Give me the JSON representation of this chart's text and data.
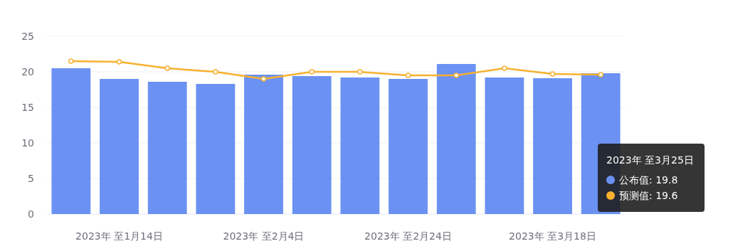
{
  "chart_data": {
    "type": "bar",
    "categories": [
      null,
      "2023年 至1月14日",
      null,
      null,
      "2023年 至2月4日",
      null,
      null,
      "2023年 至2月24日",
      null,
      null,
      "2023年 至3月18日",
      null
    ],
    "series": [
      {
        "color": "#6b91f2",
        "values": [
          20.5,
          19.0,
          18.6,
          18.3,
          19.6,
          19.4,
          19.2,
          19.0,
          21.1,
          19.2,
          19.1,
          19.8
        ]
      },
      {
        "type": "line",
        "color": "#f7b12f",
        "values": [
          21.5,
          21.4,
          20.5,
          20.0,
          19.0,
          20.0,
          20.0,
          19.5,
          19.5,
          20.5,
          19.7,
          19.6
        ]
      }
    ],
    "ylim": [
      0,
      25
    ],
    "yticks": [
      0,
      5,
      10,
      15,
      20,
      25
    ],
    "grid": "y",
    "marker": "circle",
    "annotations": [
      "2023年 至3月25日",
      "公布值: 19.8",
      "预测值: 19.6"
    ]
  }
}
